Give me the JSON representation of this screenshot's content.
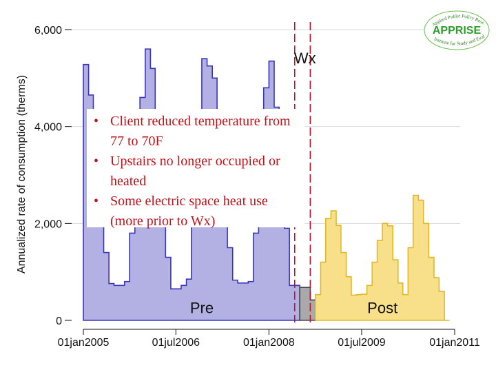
{
  "chart_data": {
    "type": "area",
    "title": "",
    "xlabel": "",
    "ylabel": "Annualized rate of consumption (therms)",
    "ylim": [
      0,
      6000
    ],
    "xlim": [
      "2005-01-01",
      "2011-01-01"
    ],
    "yticks": [
      0,
      2000,
      4000,
      6000
    ],
    "ytick_labels": [
      "0",
      "2,000",
      "4,000",
      "6,000"
    ],
    "xticks": [
      "2005-01-01",
      "2006-07-01",
      "2008-01-01",
      "2009-07-01",
      "2011-01-01"
    ],
    "xtick_labels": [
      "01jan2005",
      "01jul2006",
      "01jan2008",
      "01jul2009",
      "01jan2011"
    ],
    "grid": true,
    "series": [
      {
        "name": "Pre",
        "color": "#b3b0e4",
        "edge": "#3b36b8",
        "points": [
          [
            "2005-01-01",
            5280
          ],
          [
            "2005-02-01",
            4650
          ],
          [
            "2005-03-01",
            4000
          ],
          [
            "2005-04-01",
            2800
          ],
          [
            "2005-05-01",
            1400
          ],
          [
            "2005-06-01",
            760
          ],
          [
            "2005-07-01",
            720
          ],
          [
            "2005-08-01",
            720
          ],
          [
            "2005-09-01",
            800
          ],
          [
            "2005-10-01",
            1800
          ],
          [
            "2005-11-01",
            3400
          ],
          [
            "2005-12-01",
            4600
          ],
          [
            "2006-01-01",
            5600
          ],
          [
            "2006-02-01",
            5200
          ],
          [
            "2006-03-01",
            4200
          ],
          [
            "2006-04-01",
            2700
          ],
          [
            "2006-05-01",
            1300
          ],
          [
            "2006-06-01",
            650
          ],
          [
            "2006-07-01",
            650
          ],
          [
            "2006-08-01",
            720
          ],
          [
            "2006-09-01",
            850
          ],
          [
            "2006-10-01",
            2000
          ],
          [
            "2006-11-01",
            3700
          ],
          [
            "2006-12-01",
            5400
          ],
          [
            "2007-01-01",
            5250
          ],
          [
            "2007-02-01",
            5000
          ],
          [
            "2007-03-01",
            4000
          ],
          [
            "2007-04-01",
            2800
          ],
          [
            "2007-05-01",
            1500
          ],
          [
            "2007-06-01",
            830
          ],
          [
            "2007-07-01",
            770
          ],
          [
            "2007-08-01",
            770
          ],
          [
            "2007-09-01",
            800
          ],
          [
            "2007-10-01",
            1800
          ],
          [
            "2007-11-01",
            3400
          ],
          [
            "2007-12-01",
            4800
          ],
          [
            "2008-01-01",
            5350
          ],
          [
            "2008-02-01",
            4400
          ],
          [
            "2008-03-01",
            3300
          ],
          [
            "2008-04-01",
            1900
          ],
          [
            "2008-05-01",
            720
          ],
          [
            "2008-06-01",
            720
          ]
        ]
      },
      {
        "name": "Wx",
        "color": "#a9a9a9",
        "edge": "#4a4a4a",
        "points": [
          [
            "2008-07-01",
            680
          ],
          [
            "2008-08-01",
            680
          ],
          [
            "2008-09-01",
            420
          ]
        ]
      },
      {
        "name": "Post",
        "color": "#f8df8a",
        "edge": "#e2b82a",
        "points": [
          [
            "2008-10-01",
            530
          ],
          [
            "2008-11-01",
            1200
          ],
          [
            "2008-12-01",
            2100
          ],
          [
            "2009-01-01",
            2260
          ],
          [
            "2009-02-01",
            1960
          ],
          [
            "2009-03-01",
            1400
          ],
          [
            "2009-04-01",
            900
          ],
          [
            "2009-05-01",
            520
          ],
          [
            "2009-06-01",
            530
          ],
          [
            "2009-07-01",
            540
          ],
          [
            "2009-08-01",
            720
          ],
          [
            "2009-09-01",
            1200
          ],
          [
            "2009-10-01",
            1650
          ],
          [
            "2009-11-01",
            2000
          ],
          [
            "2009-12-01",
            1950
          ],
          [
            "2010-01-01",
            1250
          ],
          [
            "2010-02-01",
            770
          ],
          [
            "2010-03-01",
            530
          ],
          [
            "2010-04-01",
            1500
          ],
          [
            "2010-05-01",
            2580
          ],
          [
            "2010-06-01",
            2480
          ],
          [
            "2010-07-01",
            2000
          ],
          [
            "2010-08-01",
            1300
          ],
          [
            "2010-09-01",
            880
          ],
          [
            "2010-10-01",
            600
          ],
          [
            "2010-11-01",
            0
          ]
        ]
      }
    ],
    "vlines": [
      "2008-06-01",
      "2008-09-01"
    ],
    "vline_color": "#c8102e",
    "annotations": [
      {
        "text": "Wx",
        "x": "2008-08-01",
        "y": 5300
      },
      {
        "text": "Pre",
        "x": "2006-12-01",
        "y": 150
      },
      {
        "text": "Post",
        "x": "2009-11-01",
        "y": 150
      }
    ],
    "callout": [
      "Client reduced temperature from 77 to 70F",
      "Upstairs no longer occupied or heated",
      "Some electric space heat use (more prior to Wx)"
    ]
  },
  "logo": {
    "name": "APPRISE",
    "arc_top": "Applied Public Policy Research",
    "arc_bottom": "Institute for Study and Evaluation"
  },
  "colors": {
    "callout_text": "#c0141c",
    "grid": "#d9d9d9"
  }
}
